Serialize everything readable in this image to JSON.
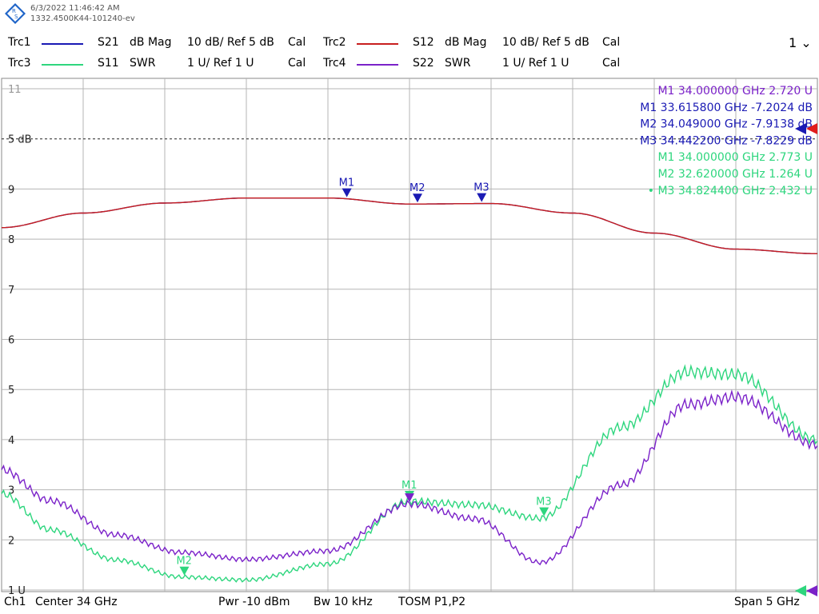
{
  "header": {
    "datetime": "6/3/2022 11:46:42 AM",
    "device": "1332.4500K44-101240-ev",
    "logo_text": "RS",
    "menu_label": "1"
  },
  "traces": [
    {
      "name": "Trc1",
      "param": "S21",
      "format": "dB Mag",
      "scale": "10 dB/ Ref 5 dB",
      "cal": "Cal",
      "color": "#1a1ab4"
    },
    {
      "name": "Trc2",
      "param": "S12",
      "format": "dB Mag",
      "scale": "10 dB/ Ref 5 dB",
      "cal": "Cal",
      "color": "#c81e1e"
    },
    {
      "name": "Trc3",
      "param": "S11",
      "format": "SWR",
      "scale": "1 U/ Ref 1 U",
      "cal": "Cal",
      "color": "#2ed67e"
    },
    {
      "name": "Trc4",
      "param": "S22",
      "format": "SWR",
      "scale": "1 U/ Ref 1 U",
      "cal": "Cal",
      "color": "#7b22c9"
    }
  ],
  "marker_table": [
    {
      "text": "M1  34.000000  GHz  2.720  U",
      "color": "#7b22c9"
    },
    {
      "text": "M1  33.615800  GHz  -7.2024  dB",
      "color": "#1a1ab4"
    },
    {
      "text": "M2  34.049000  GHz  -7.9138  dB",
      "color": "#1a1ab4"
    },
    {
      "text": "M3  34.442200  GHz  -7.8229  dB",
      "color": "#1a1ab4"
    },
    {
      "text": "M1  34.000000  GHz  2.773  U",
      "color": "#2ed67e"
    },
    {
      "text": "M2  32.620000  GHz  1.264  U",
      "color": "#2ed67e"
    },
    {
      "text": "• M3  34.824400  GHz  2.432  U",
      "color": "#2ed67e"
    }
  ],
  "footer": {
    "channel": "Ch1",
    "center": "Center   34 GHz",
    "power": "Pwr   -10 dBm",
    "bandwidth": "Bw    10 kHz",
    "cal": "TOSM P1,P2",
    "span": "Span    5 GHz"
  },
  "chart_data": {
    "type": "line",
    "x_unit": "GHz",
    "xlim": [
      31.5,
      36.5
    ],
    "y_left_ticks": [
      "11",
      "5 dB",
      "9",
      "8",
      "7",
      "6",
      "5",
      "4",
      "3",
      "2",
      "1 U"
    ],
    "ylim_swr": [
      1,
      11
    ],
    "ref_label": "5 dB",
    "grid": true,
    "series": [
      {
        "name": "S21",
        "format": "dB Mag",
        "color": "#1a1ab4",
        "points": [
          [
            31.5,
            8.23
          ],
          [
            32.0,
            8.52
          ],
          [
            32.5,
            8.72
          ],
          [
            33.0,
            8.82
          ],
          [
            33.5,
            8.82
          ],
          [
            34.0,
            8.7
          ],
          [
            34.5,
            8.71
          ],
          [
            35.0,
            8.52
          ],
          [
            35.5,
            8.12
          ],
          [
            36.0,
            7.8
          ],
          [
            36.5,
            7.71
          ]
        ]
      },
      {
        "name": "S12",
        "format": "dB Mag",
        "color": "#c81e1e",
        "points": [
          [
            31.5,
            8.23
          ],
          [
            32.0,
            8.52
          ],
          [
            32.5,
            8.72
          ],
          [
            33.0,
            8.82
          ],
          [
            33.5,
            8.82
          ],
          [
            34.0,
            8.7
          ],
          [
            34.5,
            8.71
          ],
          [
            35.0,
            8.52
          ],
          [
            35.5,
            8.12
          ],
          [
            36.0,
            7.8
          ],
          [
            36.5,
            7.71
          ]
        ]
      },
      {
        "name": "S11",
        "format": "SWR",
        "color": "#2ed67e",
        "points": [
          [
            31.5,
            2.92
          ],
          [
            31.8,
            2.2
          ],
          [
            32.2,
            1.6
          ],
          [
            32.6,
            1.26
          ],
          [
            33.0,
            1.2
          ],
          [
            33.5,
            1.52
          ],
          [
            34.0,
            2.77
          ],
          [
            34.4,
            2.7
          ],
          [
            34.8,
            2.43
          ],
          [
            35.3,
            4.25
          ],
          [
            35.7,
            5.35
          ],
          [
            36.0,
            5.3
          ],
          [
            36.5,
            4.0
          ]
        ]
      },
      {
        "name": "S22",
        "format": "SWR",
        "color": "#7b22c9",
        "points": [
          [
            31.5,
            3.4
          ],
          [
            31.8,
            2.78
          ],
          [
            32.2,
            2.1
          ],
          [
            32.6,
            1.75
          ],
          [
            33.0,
            1.61
          ],
          [
            33.5,
            1.78
          ],
          [
            34.0,
            2.72
          ],
          [
            34.4,
            2.42
          ],
          [
            34.8,
            1.55
          ],
          [
            35.3,
            3.1
          ],
          [
            35.7,
            4.7
          ],
          [
            36.0,
            4.85
          ],
          [
            36.5,
            3.9
          ]
        ]
      }
    ],
    "markers": [
      {
        "label": "M1",
        "series": "S21",
        "x": 33.6158
      },
      {
        "label": "M2",
        "series": "S21",
        "x": 34.049
      },
      {
        "label": "M3",
        "series": "S21",
        "x": 34.4422
      },
      {
        "label": "M1",
        "series": "S11",
        "x": 34.0
      },
      {
        "label": "M2",
        "series": "S11",
        "x": 32.62
      },
      {
        "label": "M3",
        "series": "S11",
        "x": 34.8244
      },
      {
        "label": "M1",
        "series": "S22",
        "x": 34.0
      }
    ]
  }
}
